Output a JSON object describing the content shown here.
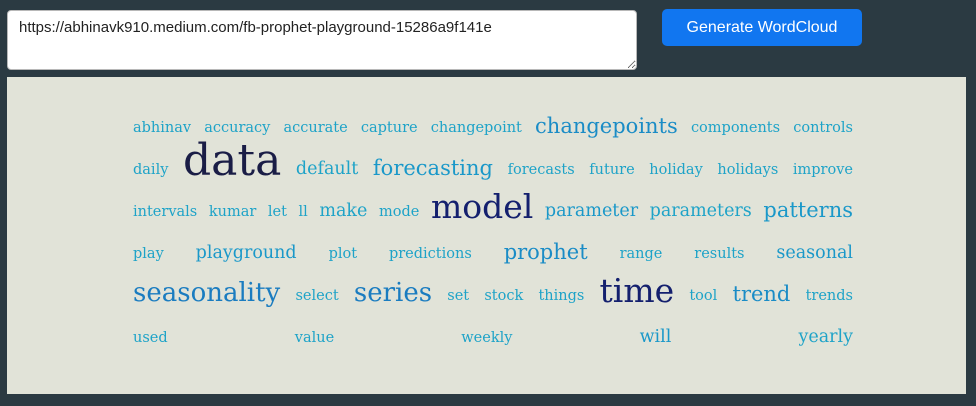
{
  "input": {
    "value": "https://abhinavk910.medium.com/fb-prophet-playground-15286a9f141e",
    "placeholder": ""
  },
  "button": {
    "label": "Generate WordCloud"
  },
  "colors": {
    "background": "#2b3a42",
    "panel": "#e1e3d8",
    "button": "#1176f0"
  },
  "wordcloud": {
    "words": [
      {
        "text": "abhinav",
        "size": 1,
        "color": "#1ea3c8"
      },
      {
        "text": "accuracy",
        "size": 1,
        "color": "#1ea3c8"
      },
      {
        "text": "accurate",
        "size": 1,
        "color": "#1ea3c8"
      },
      {
        "text": "capture",
        "size": 1,
        "color": "#1ea3c8"
      },
      {
        "text": "changepoint",
        "size": 1,
        "color": "#1ea3c8"
      },
      {
        "text": "changepoints",
        "size": 3,
        "color": "#1a8cc6"
      },
      {
        "text": "components",
        "size": 1,
        "color": "#1ea3c8"
      },
      {
        "text": "controls",
        "size": 1,
        "color": "#1ea3c8"
      },
      {
        "text": "daily",
        "size": 1,
        "color": "#1ea3c8"
      },
      {
        "text": "data",
        "size": 6,
        "color": "#1a1d46"
      },
      {
        "text": "default",
        "size": 2,
        "color": "#1ea3c8"
      },
      {
        "text": "forecasting",
        "size": 3,
        "color": "#1a98c9"
      },
      {
        "text": "forecasts",
        "size": 1,
        "color": "#1ea3c8"
      },
      {
        "text": "future",
        "size": 1,
        "color": "#1ea3c8"
      },
      {
        "text": "holiday",
        "size": 1,
        "color": "#1ea3c8"
      },
      {
        "text": "holidays",
        "size": 1,
        "color": "#1ea3c8"
      },
      {
        "text": "improve",
        "size": 1,
        "color": "#1ea3c8"
      },
      {
        "text": "intervals",
        "size": 1,
        "color": "#1ea3c8"
      },
      {
        "text": "kumar",
        "size": 1,
        "color": "#1ea3c8"
      },
      {
        "text": "let",
        "size": 1,
        "color": "#1ea3c8"
      },
      {
        "text": "ll",
        "size": 1,
        "color": "#1ea3c8"
      },
      {
        "text": "make",
        "size": 2,
        "color": "#1ea3c8"
      },
      {
        "text": "mode",
        "size": 1,
        "color": "#1ea3c8"
      },
      {
        "text": "model",
        "size": 5,
        "color": "#14206e"
      },
      {
        "text": "parameter",
        "size": 2,
        "color": "#1a98c9"
      },
      {
        "text": "parameters",
        "size": 2,
        "color": "#1ea3c8"
      },
      {
        "text": "patterns",
        "size": 3,
        "color": "#1a98c9"
      },
      {
        "text": "play",
        "size": 1,
        "color": "#1ea3c8"
      },
      {
        "text": "playground",
        "size": 2,
        "color": "#1a98c9"
      },
      {
        "text": "plot",
        "size": 1,
        "color": "#1ea3c8"
      },
      {
        "text": "predictions",
        "size": 1,
        "color": "#1ea3c8"
      },
      {
        "text": "prophet",
        "size": 3,
        "color": "#1a8cc6"
      },
      {
        "text": "range",
        "size": 1,
        "color": "#1ea3c8"
      },
      {
        "text": "results",
        "size": 1,
        "color": "#1ea3c8"
      },
      {
        "text": "seasonal",
        "size": 2,
        "color": "#1a98c9"
      },
      {
        "text": "seasonality",
        "size": 4,
        "color": "#1a7cc0"
      },
      {
        "text": "select",
        "size": 1,
        "color": "#1ea3c8"
      },
      {
        "text": "series",
        "size": 4,
        "color": "#1a7cc0"
      },
      {
        "text": "set",
        "size": 1,
        "color": "#1ea3c8"
      },
      {
        "text": "stock",
        "size": 1,
        "color": "#1ea3c8"
      },
      {
        "text": "things",
        "size": 1,
        "color": "#1ea3c8"
      },
      {
        "text": "time",
        "size": 5,
        "color": "#14206e"
      },
      {
        "text": "tool",
        "size": 1,
        "color": "#1ea3c8"
      },
      {
        "text": "trend",
        "size": 3,
        "color": "#1a8cc6"
      },
      {
        "text": "trends",
        "size": 1,
        "color": "#1ea3c8"
      },
      {
        "text": "used",
        "size": 1,
        "color": "#1ea3c8"
      },
      {
        "text": "value",
        "size": 1,
        "color": "#1ea3c8"
      },
      {
        "text": "weekly",
        "size": 1,
        "color": "#1ea3c8"
      },
      {
        "text": "will",
        "size": 2,
        "color": "#1a98c9"
      },
      {
        "text": "yearly",
        "size": 2,
        "color": "#1ea3c8"
      }
    ]
  }
}
